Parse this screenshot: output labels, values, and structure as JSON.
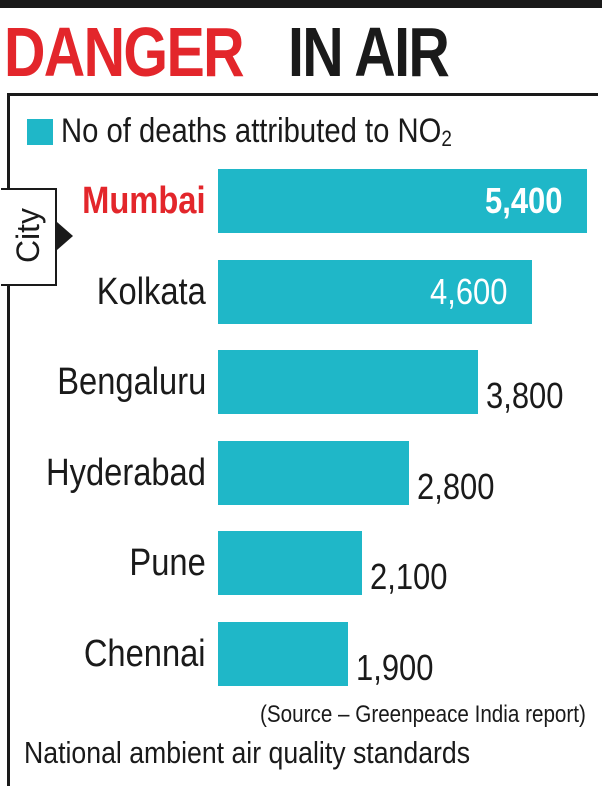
{
  "title_part1": "DANGER",
  "title_part2": "IN AIR",
  "axis_label": "City",
  "source": "(Source – Greenpeace India report)",
  "footer": "National ambient air quality standards",
  "colors": {
    "bar": "#1fb7c8",
    "highlight": "#e3262b",
    "text": "#1a1a1a"
  },
  "chart_data": {
    "type": "bar",
    "orientation": "horizontal",
    "legend": {
      "label": "No of deaths attributed to NO",
      "subscript": "2",
      "position": "top-left"
    },
    "categories": [
      "Mumbai",
      "Kolkata",
      "Bengaluru",
      "Hyderabad",
      "Pune",
      "Chennai"
    ],
    "values": [
      5400,
      4600,
      3800,
      2800,
      2100,
      1900
    ],
    "value_labels": [
      "5,400",
      "4,600",
      "3,800",
      "2,800",
      "2,100",
      "1,900"
    ],
    "highlighted_category": "Mumbai",
    "xlim": [
      0,
      5400
    ],
    "grid": false
  }
}
